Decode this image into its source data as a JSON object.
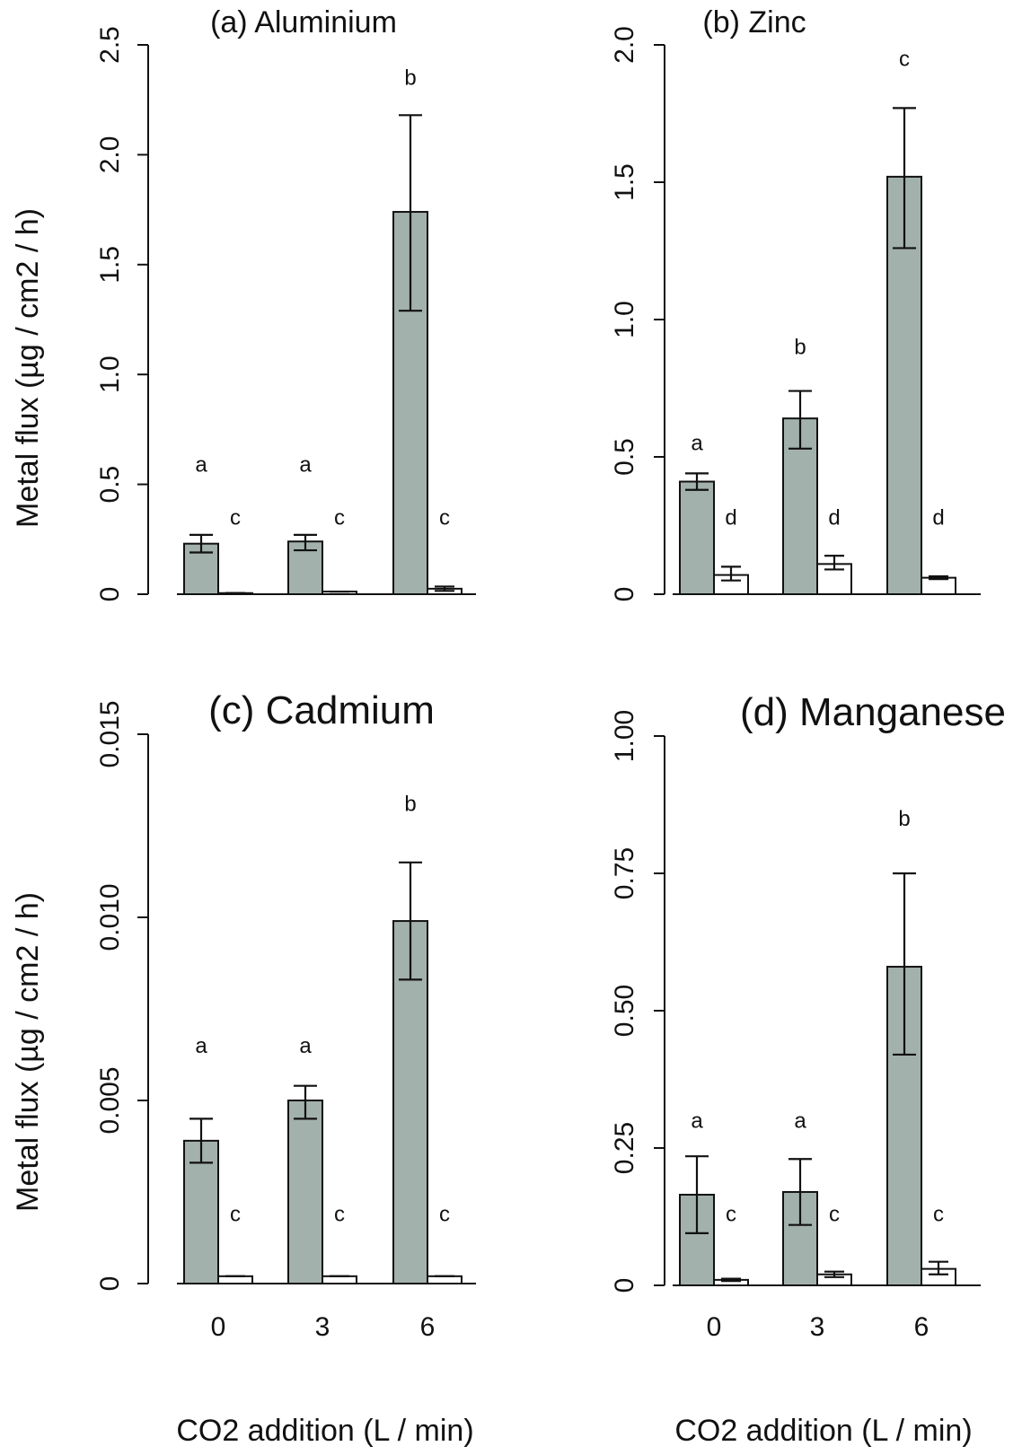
{
  "figure": {
    "xlabel": "CO2 addition (L / min)",
    "ylabel": "Metal flux (µg / cm2 / h)"
  },
  "chart_data": [
    {
      "type": "bar",
      "title": "(a) Aluminium",
      "categories": [
        "0",
        "3",
        "6"
      ],
      "ylim": [
        0,
        2.5
      ],
      "yticks": [
        0,
        0.5,
        1.0,
        1.5,
        2.0,
        2.5
      ],
      "ytick_labels": [
        "0",
        "0.5",
        "1.0",
        "1.5",
        "2.0",
        "2.5"
      ],
      "series": [
        {
          "color": "#a3b1ad",
          "values": [
            0.23,
            0.24,
            1.74
          ],
          "err_low": [
            0.19,
            0.2,
            1.29
          ],
          "err_high": [
            0.27,
            0.27,
            2.18
          ],
          "letters": [
            "a",
            "a",
            "b"
          ],
          "letter_y": [
            0.59,
            0.59,
            2.35
          ]
        },
        {
          "color": "#ffffff",
          "values": [
            0.005,
            0.012,
            0.025
          ],
          "err_low": [
            0.005,
            0.012,
            0.015
          ],
          "err_high": [
            0.005,
            0.012,
            0.035
          ],
          "letters": [
            "c",
            "c",
            "c"
          ],
          "letter_y": [
            0.35,
            0.35,
            0.35
          ]
        }
      ]
    },
    {
      "type": "bar",
      "title": "(b) Zinc",
      "categories": [
        "0",
        "3",
        "6"
      ],
      "ylim": [
        0,
        2.0
      ],
      "yticks": [
        0,
        0.5,
        1.0,
        1.5,
        2.0
      ],
      "ytick_labels": [
        "0",
        "0.5",
        "1.0",
        "1.5",
        "2.0"
      ],
      "series": [
        {
          "color": "#a3b1ad",
          "values": [
            0.41,
            0.64,
            1.52
          ],
          "err_low": [
            0.38,
            0.53,
            1.26
          ],
          "err_high": [
            0.44,
            0.74,
            1.77
          ],
          "letters": [
            "a",
            "b",
            "c"
          ],
          "letter_y": [
            0.55,
            0.9,
            1.95
          ]
        },
        {
          "color": "#ffffff",
          "values": [
            0.07,
            0.11,
            0.06
          ],
          "err_low": [
            0.05,
            0.09,
            0.055
          ],
          "err_high": [
            0.1,
            0.14,
            0.065
          ],
          "letters": [
            "d",
            "d",
            "d"
          ],
          "letter_y": [
            0.28,
            0.28,
            0.28
          ]
        }
      ]
    },
    {
      "type": "bar",
      "title": "(c) Cadmium",
      "categories": [
        "0",
        "3",
        "6"
      ],
      "ylim": [
        0,
        0.015
      ],
      "yticks": [
        0,
        0.005,
        0.01,
        0.015
      ],
      "ytick_labels": [
        "0",
        "0.005",
        "0.010",
        "0.015"
      ],
      "series": [
        {
          "color": "#a3b1ad",
          "values": [
            0.0039,
            0.005,
            0.0099
          ],
          "err_low": [
            0.0033,
            0.0045,
            0.0083
          ],
          "err_high": [
            0.0045,
            0.0054,
            0.0115
          ],
          "letters": [
            "a",
            "a",
            "b"
          ],
          "letter_y": [
            0.0065,
            0.0065,
            0.0131
          ]
        },
        {
          "color": "#ffffff",
          "values": [
            0.0002,
            0.0002,
            0.0002
          ],
          "err_low": [
            0.0002,
            0.0002,
            0.0002
          ],
          "err_high": [
            0.0002,
            0.0002,
            0.0002
          ],
          "letters": [
            "c",
            "c",
            "c"
          ],
          "letter_y": [
            0.0019,
            0.0019,
            0.0019
          ]
        }
      ]
    },
    {
      "type": "bar",
      "title": "(d) Manganese",
      "categories": [
        "0",
        "3",
        "6"
      ],
      "ylim": [
        0,
        1.0
      ],
      "yticks": [
        0,
        0.25,
        0.5,
        0.75,
        1.0
      ],
      "ytick_labels": [
        "0",
        "0.25",
        "0.50",
        "0.75",
        "1.00"
      ],
      "series": [
        {
          "color": "#a3b1ad",
          "values": [
            0.165,
            0.17,
            0.58
          ],
          "err_low": [
            0.095,
            0.11,
            0.42
          ],
          "err_high": [
            0.235,
            0.23,
            0.75
          ],
          "letters": [
            "a",
            "a",
            "b"
          ],
          "letter_y": [
            0.3,
            0.3,
            0.85
          ]
        },
        {
          "color": "#ffffff",
          "values": [
            0.01,
            0.02,
            0.03
          ],
          "err_low": [
            0.008,
            0.015,
            0.02
          ],
          "err_high": [
            0.012,
            0.025,
            0.043
          ],
          "letters": [
            "c",
            "c",
            "c"
          ],
          "letter_y": [
            0.13,
            0.13,
            0.13
          ]
        }
      ]
    }
  ]
}
